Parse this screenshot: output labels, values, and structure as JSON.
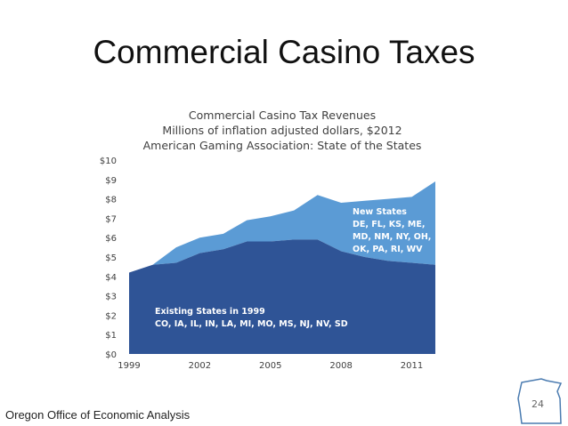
{
  "slide": {
    "title": "Commercial Casino Taxes",
    "footer": "Oregon Office of Economic Analysis",
    "page_number": "24"
  },
  "colors": {
    "existing": "#2f5496",
    "new": "#5b9bd5",
    "axis_text": "#404040",
    "label_text": "#ffffff",
    "badge_outline": "#4a7bb0"
  },
  "chart_data": {
    "type": "area",
    "stacked": true,
    "title": [
      "Commercial Casino Tax Revenues",
      "Millions of inflation adjusted dollars, $2012",
      "American Gaming Association: State of the States"
    ],
    "x": [
      1999,
      2000,
      2001,
      2002,
      2003,
      2004,
      2005,
      2006,
      2007,
      2008,
      2009,
      2010,
      2011,
      2012
    ],
    "xticks": [
      "1999",
      "2002",
      "2005",
      "2008",
      "2011"
    ],
    "yticks": [
      "$0",
      "$1",
      "$2",
      "$3",
      "$4",
      "$5",
      "$6",
      "$7",
      "$8",
      "$9",
      "$10"
    ],
    "ylim": [
      0,
      10
    ],
    "grid": false,
    "series": [
      {
        "name": "Existing States in 1999",
        "label_lines": [
          "Existing States in 1999",
          "CO, IA, IL, IN, LA, MI, MO, MS, NJ, NV, SD"
        ],
        "values": [
          4.2,
          4.6,
          4.7,
          5.2,
          5.4,
          5.8,
          5.8,
          5.9,
          5.9,
          5.3,
          5.0,
          4.8,
          4.7,
          4.6
        ]
      },
      {
        "name": "New States",
        "label_lines": [
          "New States",
          "DE, FL, KS, ME,",
          "MD, NM, NY, OH,",
          "OK, PA, RI, WV"
        ],
        "values": [
          0.0,
          0.0,
          0.8,
          0.8,
          0.8,
          1.1,
          1.3,
          1.5,
          2.3,
          2.5,
          2.9,
          3.2,
          3.4,
          4.3
        ]
      }
    ]
  }
}
